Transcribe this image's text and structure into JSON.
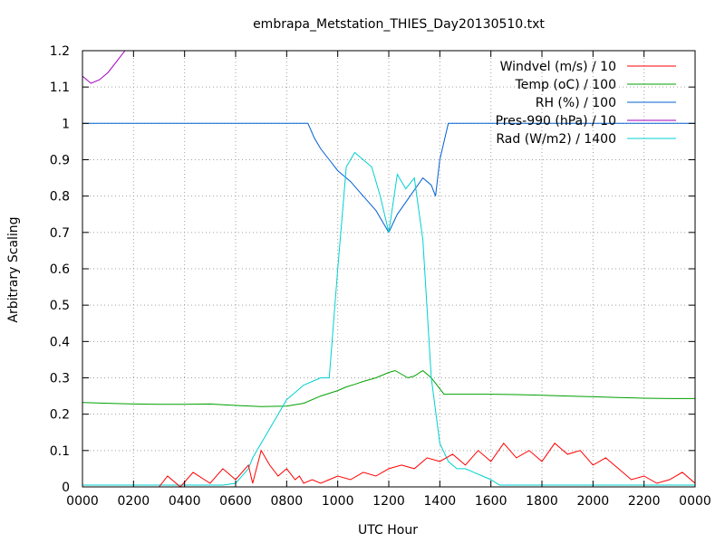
{
  "chart_data": {
    "type": "line",
    "title": "embrapa_Metstation_THIES_Day20130510.txt",
    "xlabel": "UTC Hour",
    "ylabel": "Arbitrary Scaling",
    "xlim": [
      0,
      1440
    ],
    "ylim": [
      0,
      1.2
    ],
    "grid": true,
    "legend_position": "top-right",
    "x_tick_labels": [
      "0000",
      "0200",
      "0400",
      "0600",
      "0800",
      "1000",
      "1200",
      "1400",
      "1600",
      "1800",
      "2000",
      "2200",
      "0000"
    ],
    "y_tick_labels": [
      "0",
      "0.1",
      "0.2",
      "0.3",
      "0.4",
      "0.5",
      "0.6",
      "0.7",
      "0.8",
      "0.9",
      "1",
      "1.1",
      "1.2"
    ],
    "y_ticks": [
      0,
      0.1,
      0.2,
      0.3,
      0.4,
      0.5,
      0.6,
      0.7,
      0.8,
      0.9,
      1.0,
      1.1,
      1.2
    ],
    "series": [
      {
        "name": "Windvel (m/s) / 10",
        "color": "#ff0000",
        "x": [
          0,
          180,
          200,
          230,
          260,
          300,
          330,
          360,
          390,
          400,
          420,
          440,
          460,
          480,
          500,
          510,
          520,
          540,
          560,
          580,
          600,
          630,
          660,
          690,
          720,
          750,
          780,
          810,
          840,
          870,
          900,
          930,
          960,
          990,
          1020,
          1050,
          1080,
          1110,
          1140,
          1170,
          1200,
          1230,
          1260,
          1290,
          1320,
          1350,
          1380,
          1410,
          1440
        ],
        "y": [
          0,
          0,
          0.03,
          0,
          0.04,
          0.01,
          0.05,
          0.02,
          0.06,
          0.01,
          0.1,
          0.06,
          0.03,
          0.05,
          0.02,
          0.03,
          0.01,
          0.02,
          0.01,
          0.02,
          0.03,
          0.02,
          0.04,
          0.03,
          0.05,
          0.06,
          0.05,
          0.08,
          0.07,
          0.09,
          0.06,
          0.1,
          0.07,
          0.12,
          0.08,
          0.1,
          0.07,
          0.12,
          0.09,
          0.1,
          0.06,
          0.08,
          0.05,
          0.02,
          0.03,
          0.01,
          0.02,
          0.04,
          0.01
        ]
      },
      {
        "name": "Temp (oC) / 100",
        "color": "#00a000",
        "x": [
          0,
          60,
          120,
          180,
          240,
          300,
          330,
          360,
          420,
          480,
          520,
          560,
          600,
          620,
          640,
          660,
          690,
          720,
          735,
          750,
          765,
          780,
          800,
          820,
          850,
          900,
          960,
          1020,
          1080,
          1140,
          1200,
          1260,
          1320,
          1380,
          1440
        ],
        "y": [
          0.232,
          0.23,
          0.228,
          0.227,
          0.227,
          0.228,
          0.226,
          0.224,
          0.221,
          0.222,
          0.23,
          0.25,
          0.265,
          0.275,
          0.282,
          0.29,
          0.3,
          0.315,
          0.32,
          0.31,
          0.3,
          0.305,
          0.32,
          0.3,
          0.255,
          0.255,
          0.255,
          0.254,
          0.252,
          0.25,
          0.248,
          0.246,
          0.244,
          0.243,
          0.243
        ]
      },
      {
        "name": "RH (%) / 100",
        "color": "#0060d0",
        "x": [
          0,
          60,
          120,
          180,
          240,
          300,
          360,
          420,
          480,
          530,
          545,
          560,
          580,
          600,
          630,
          660,
          690,
          710,
          720,
          740,
          770,
          800,
          820,
          830,
          840,
          860,
          900,
          960,
          1020,
          1080,
          1140,
          1200,
          1260,
          1320,
          1380,
          1440
        ],
        "y": [
          1,
          1,
          1,
          1,
          1,
          1,
          1,
          1,
          1,
          1,
          0.96,
          0.93,
          0.9,
          0.87,
          0.84,
          0.8,
          0.76,
          0.72,
          0.7,
          0.75,
          0.8,
          0.85,
          0.83,
          0.8,
          0.9,
          1,
          1,
          1,
          1,
          1,
          1,
          1,
          1,
          1,
          1,
          1
        ]
      },
      {
        "name": "Pres-990 (hPa) / 10",
        "color": "#a000c0",
        "x": [
          0,
          20,
          40,
          60,
          80,
          100,
          110,
          130,
          160,
          190,
          210,
          240,
          270,
          300,
          330,
          360,
          380,
          390,
          400,
          440,
          460,
          480,
          520,
          560,
          600,
          640,
          680,
          720,
          760,
          790,
          810,
          840,
          860,
          900,
          960,
          1000,
          1020,
          1040,
          1080,
          1120,
          1160,
          1200,
          1240,
          1280,
          1320,
          1360,
          1400,
          1430,
          1440
        ],
        "y": [
          1.13,
          1.11,
          1.12,
          1.14,
          1.17,
          1.2,
          1.2,
          1.2,
          1.2,
          1.2,
          1.2,
          1.2,
          1.2,
          1.2,
          1.2,
          1.2,
          1.2,
          1.2,
          1.2,
          1.2,
          1.2,
          1.2,
          1.2,
          1.2,
          1.2,
          1.2,
          1.2,
          1.2,
          1.2,
          1.2,
          1.2,
          1.2,
          1.2,
          1.2,
          1.2,
          1.2,
          1.2,
          1.2,
          1.2,
          1.2,
          1.2,
          1.2,
          1.2,
          1.2,
          1.2,
          1.2,
          1.2,
          1.2,
          1.2
        ]
      },
      {
        "name": "Rad (W/m2) / 1400",
        "color": "#00d0d0",
        "x": [
          0,
          300,
          330,
          360,
          390,
          400,
          420,
          440,
          460,
          480,
          500,
          520,
          540,
          560,
          580,
          600,
          620,
          640,
          660,
          680,
          700,
          720,
          740,
          760,
          780,
          800,
          820,
          840,
          860,
          880,
          900,
          920,
          940,
          960,
          980,
          1000,
          1440
        ],
        "y": [
          0.005,
          0.005,
          0.005,
          0.01,
          0.05,
          0.08,
          0.12,
          0.16,
          0.2,
          0.24,
          0.26,
          0.28,
          0.29,
          0.3,
          0.3,
          0.6,
          0.88,
          0.92,
          0.9,
          0.88,
          0.8,
          0.7,
          0.86,
          0.82,
          0.85,
          0.68,
          0.3,
          0.12,
          0.07,
          0.05,
          0.05,
          0.04,
          0.03,
          0.02,
          0.005,
          0.005,
          0.005
        ]
      }
    ]
  }
}
